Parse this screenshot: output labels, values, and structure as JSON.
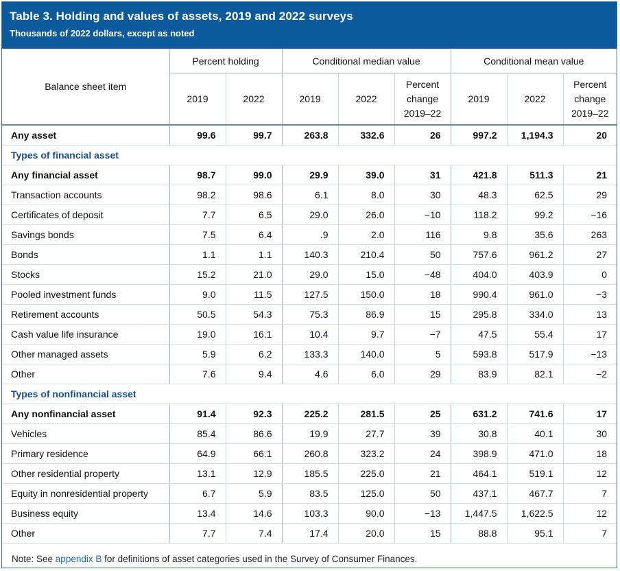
{
  "title": "Table 3. Holding and values of assets, 2019 and 2022 surveys",
  "subtitle": "Thousands of 2022 dollars, except as noted",
  "header": {
    "item": "Balance sheet item",
    "groups": [
      "Percent holding",
      "Conditional median value",
      "Conditional mean value"
    ],
    "sub": [
      "2019",
      "2022",
      "2019",
      "2022",
      "Percent change 2019–22",
      "2019",
      "2022",
      "Percent change 2019–22"
    ]
  },
  "rows": [
    {
      "type": "bold",
      "label": "Any asset",
      "v": [
        "99.6",
        "99.7",
        "263.8",
        "332.6",
        "26",
        "997.2",
        "1,194.3",
        "20"
      ]
    },
    {
      "type": "section",
      "label": "Types of financial asset"
    },
    {
      "type": "bold",
      "label": "Any financial asset",
      "v": [
        "98.7",
        "99.0",
        "29.9",
        "39.0",
        "31",
        "421.8",
        "511.3",
        "21"
      ]
    },
    {
      "type": "normal",
      "label": "Transaction accounts",
      "v": [
        "98.2",
        "98.6",
        "6.1",
        "8.0",
        "30",
        "48.3",
        "62.5",
        "29"
      ]
    },
    {
      "type": "normal",
      "label": "Certificates of deposit",
      "v": [
        "7.7",
        "6.5",
        "29.0",
        "26.0",
        "−10",
        "118.2",
        "99.2",
        "−16"
      ]
    },
    {
      "type": "normal",
      "label": "Savings bonds",
      "v": [
        "7.5",
        "6.4",
        ".9",
        "2.0",
        "116",
        "9.8",
        "35.6",
        "263"
      ]
    },
    {
      "type": "normal",
      "label": "Bonds",
      "v": [
        "1.1",
        "1.1",
        "140.3",
        "210.4",
        "50",
        "757.6",
        "961.2",
        "27"
      ]
    },
    {
      "type": "normal",
      "label": "Stocks",
      "v": [
        "15.2",
        "21.0",
        "29.0",
        "15.0",
        "−48",
        "404.0",
        "403.9",
        "0"
      ]
    },
    {
      "type": "normal",
      "label": "Pooled investment funds",
      "v": [
        "9.0",
        "11.5",
        "127.5",
        "150.0",
        "18",
        "990.4",
        "961.0",
        "−3"
      ]
    },
    {
      "type": "normal",
      "label": "Retirement accounts",
      "v": [
        "50.5",
        "54.3",
        "75.3",
        "86.9",
        "15",
        "295.8",
        "334.0",
        "13"
      ]
    },
    {
      "type": "normal",
      "label": "Cash value life insurance",
      "v": [
        "19.0",
        "16.1",
        "10.4",
        "9.7",
        "−7",
        "47.5",
        "55.4",
        "17"
      ]
    },
    {
      "type": "normal",
      "label": "Other managed assets",
      "v": [
        "5.9",
        "6.2",
        "133.3",
        "140.0",
        "5",
        "593.8",
        "517.9",
        "−13"
      ]
    },
    {
      "type": "normal",
      "label": "Other",
      "v": [
        "7.6",
        "9.4",
        "4.6",
        "6.0",
        "29",
        "83.9",
        "82.1",
        "−2"
      ]
    },
    {
      "type": "section",
      "label": "Types of nonfinancial asset"
    },
    {
      "type": "bold",
      "label": "Any nonfinancial asset",
      "v": [
        "91.4",
        "92.3",
        "225.2",
        "281.5",
        "25",
        "631.2",
        "741.6",
        "17"
      ]
    },
    {
      "type": "normal",
      "label": "Vehicles",
      "v": [
        "85.4",
        "86.6",
        "19.9",
        "27.7",
        "39",
        "30.8",
        "40.1",
        "30"
      ]
    },
    {
      "type": "normal",
      "label": "Primary residence",
      "v": [
        "64.9",
        "66.1",
        "260.8",
        "323.2",
        "24",
        "398.9",
        "471.0",
        "18"
      ]
    },
    {
      "type": "normal",
      "label": "Other residential property",
      "v": [
        "13.1",
        "12.9",
        "185.5",
        "225.0",
        "21",
        "464.1",
        "519.1",
        "12"
      ]
    },
    {
      "type": "normal",
      "label": "Equity in nonresidential property",
      "v": [
        "6.7",
        "5.9",
        "83.5",
        "125.0",
        "50",
        "437.1",
        "467.7",
        "7"
      ]
    },
    {
      "type": "normal",
      "label": "Business equity",
      "v": [
        "13.4",
        "14.6",
        "103.3",
        "90.0",
        "−13",
        "1,447.5",
        "1,622.5",
        "12"
      ]
    },
    {
      "type": "normal",
      "label": "Other",
      "v": [
        "7.7",
        "7.4",
        "17.4",
        "20.0",
        "15",
        "88.8",
        "95.1",
        "7"
      ]
    }
  ],
  "note": {
    "prefix": "Note: See ",
    "link": "appendix B",
    "suffix": " for definitions of asset categories used in the Survey of Consumer Finances."
  },
  "colors": {
    "banner": "#0a5a9c",
    "section_text": "#1a4f86",
    "link": "#1b66b8"
  }
}
